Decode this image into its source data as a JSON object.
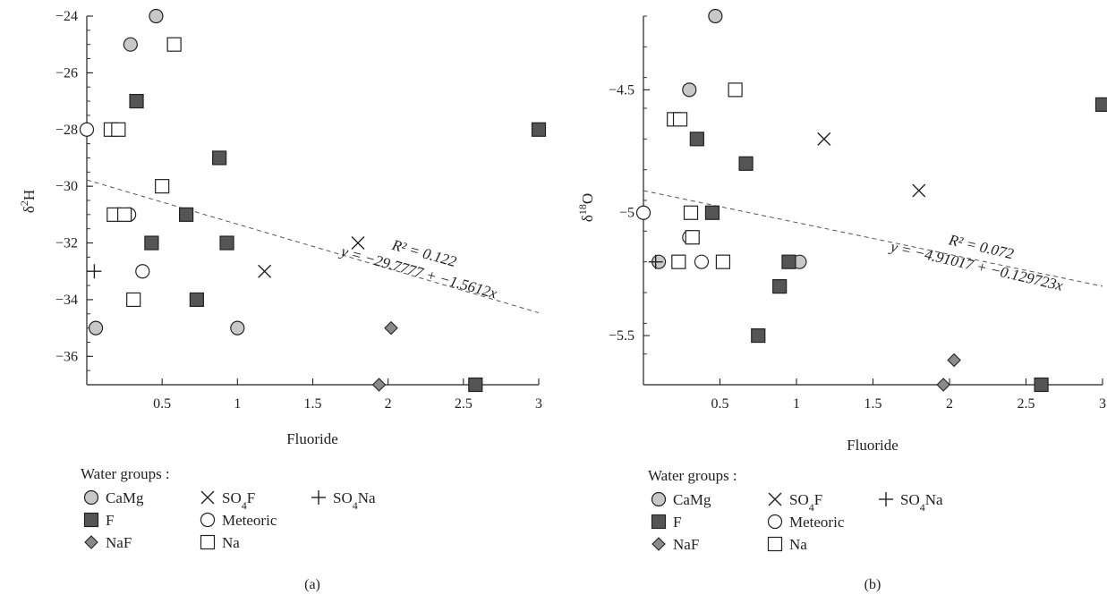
{
  "chart_data": [
    {
      "panel": "(a)",
      "type": "scatter",
      "xlabel": "Fluoride",
      "ylabel_base": "δ",
      "ylabel_sup": "2",
      "ylabel_suffix": "H",
      "xlim": [
        0.0,
        3.0
      ],
      "ylim": [
        -37.0,
        -24.0
      ],
      "xticks": [
        "0.5",
        "1",
        "1.5",
        "2",
        "2.5",
        "3"
      ],
      "xtick_values": [
        0.5,
        1,
        1.5,
        2,
        2.5,
        3
      ],
      "yticks": [
        "−24",
        "−26",
        "−28",
        "−30",
        "−32",
        "−34",
        "−36"
      ],
      "ytick_values": [
        -24,
        -26,
        -28,
        -30,
        -32,
        -34,
        -36
      ],
      "trend": {
        "intercept": -29.7777,
        "slope": -1.5612,
        "r2_text": "R² = 0.122",
        "eq_text": "y = −29.7777 + −1.5612x"
      },
      "series": [
        {
          "name": "CaMg",
          "marker": "circle-gray",
          "points": [
            [
              0.46,
              -24.0
            ],
            [
              0.29,
              -25.0
            ],
            [
              0.06,
              -35.0
            ],
            [
              1.0,
              -35.0
            ]
          ]
        },
        {
          "name": "F",
          "marker": "square-dark",
          "points": [
            [
              0.33,
              -27.0
            ],
            [
              0.88,
              -29.0
            ],
            [
              0.66,
              -31.0
            ],
            [
              0.43,
              -32.0
            ],
            [
              0.93,
              -32.0
            ],
            [
              0.73,
              -34.0
            ],
            [
              3.0,
              -28.0
            ],
            [
              2.58,
              -37.0
            ]
          ]
        },
        {
          "name": "NaF",
          "marker": "diamond",
          "points": [
            [
              2.02,
              -35.0
            ],
            [
              1.94,
              -37.0
            ]
          ]
        },
        {
          "name": "SO₄F",
          "marker": "x",
          "points": [
            [
              1.8,
              -32.0
            ],
            [
              1.18,
              -33.0
            ]
          ]
        },
        {
          "name": "Meteoric",
          "marker": "circle-open",
          "points": [
            [
              0.0,
              -28.0
            ],
            [
              0.28,
              -31.0
            ],
            [
              0.37,
              -33.0
            ]
          ]
        },
        {
          "name": "Na",
          "marker": "square-open",
          "points": [
            [
              0.58,
              -25.0
            ],
            [
              0.16,
              -28.0
            ],
            [
              0.21,
              -28.0
            ],
            [
              0.5,
              -30.0
            ],
            [
              0.18,
              -31.0
            ],
            [
              0.25,
              -31.0
            ],
            [
              0.31,
              -34.0
            ]
          ]
        },
        {
          "name": "SO₄Na",
          "marker": "plus",
          "points": [
            [
              0.05,
              -33.0
            ]
          ]
        }
      ]
    },
    {
      "panel": "(b)",
      "type": "scatter",
      "xlabel": "Fluoride",
      "ylabel_base": "δ",
      "ylabel_sup": "18",
      "ylabel_suffix": "O",
      "xlim": [
        0.0,
        3.0
      ],
      "ylim": [
        -5.7,
        -4.2
      ],
      "xticks": [
        "0.5",
        "1",
        "1.5",
        "2",
        "2.5",
        "3"
      ],
      "xtick_values": [
        0.5,
        1,
        1.5,
        2,
        2.5,
        3
      ],
      "yticks": [
        "−4.5",
        "−5",
        "−5.5"
      ],
      "ytick_values": [
        -4.5,
        -5.0,
        -5.5
      ],
      "trend": {
        "intercept": -4.91017,
        "slope": -0.129723,
        "r2_text": "R² = 0.072",
        "eq_text": "y = −4.91017 + −0.129723x"
      },
      "series": [
        {
          "name": "CaMg",
          "marker": "circle-gray",
          "points": [
            [
              0.47,
              -4.2
            ],
            [
              0.3,
              -4.5
            ],
            [
              0.1,
              -5.2
            ],
            [
              1.02,
              -5.2
            ]
          ]
        },
        {
          "name": "F",
          "marker": "square-dark",
          "points": [
            [
              3.0,
              -4.56
            ],
            [
              0.35,
              -4.7
            ],
            [
              0.67,
              -4.8
            ],
            [
              0.45,
              -5.0
            ],
            [
              0.95,
              -5.2
            ],
            [
              0.89,
              -5.3
            ],
            [
              0.75,
              -5.5
            ],
            [
              2.6,
              -5.7
            ]
          ]
        },
        {
          "name": "NaF",
          "marker": "diamond",
          "points": [
            [
              2.03,
              -5.6
            ],
            [
              1.96,
              -5.7
            ]
          ]
        },
        {
          "name": "SO₄F",
          "marker": "x",
          "points": [
            [
              1.18,
              -4.7
            ],
            [
              1.8,
              -4.91
            ]
          ]
        },
        {
          "name": "Meteoric",
          "marker": "circle-open",
          "points": [
            [
              0.0,
              -5.0
            ],
            [
              0.3,
              -5.1
            ],
            [
              0.38,
              -5.2
            ]
          ]
        },
        {
          "name": "Na",
          "marker": "square-open",
          "points": [
            [
              0.6,
              -4.5
            ],
            [
              0.2,
              -4.62
            ],
            [
              0.24,
              -4.62
            ],
            [
              0.31,
              -5.0
            ],
            [
              0.32,
              -5.1
            ],
            [
              0.23,
              -5.2
            ],
            [
              0.52,
              -5.2
            ]
          ]
        },
        {
          "name": "SO₄Na",
          "marker": "plus",
          "points": [
            [
              0.08,
              -5.2
            ]
          ]
        }
      ]
    }
  ],
  "legend": {
    "title": "Water groups :",
    "items": [
      {
        "label": "CaMg",
        "marker": "circle-gray"
      },
      {
        "label": "F",
        "marker": "square-dark"
      },
      {
        "label": "NaF",
        "marker": "diamond"
      },
      {
        "label": "SO",
        "sub": "4",
        "tail": "F",
        "marker": "x"
      },
      {
        "label": "Meteoric",
        "marker": "circle-open"
      },
      {
        "label": "Na",
        "marker": "square-open"
      },
      {
        "label": "SO",
        "sub": "4",
        "tail": "Na",
        "marker": "plus"
      }
    ]
  },
  "captions": [
    "(a)",
    "(b)"
  ],
  "colors": {
    "camg_fill": "#c8c8c8",
    "f_fill": "#555555",
    "naf_fill": "#8a8a8a",
    "stroke": "#222222"
  }
}
